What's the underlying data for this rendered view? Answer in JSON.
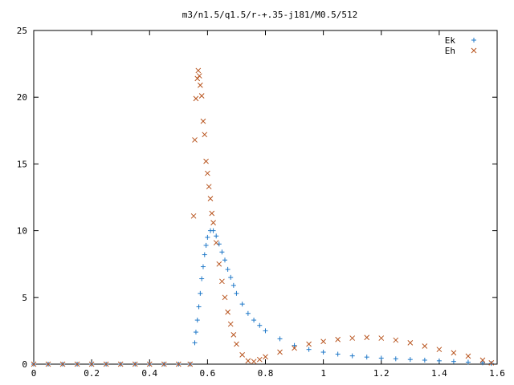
{
  "chart_data": {
    "type": "scatter",
    "title": "m3/n1.5/q1.5/r-+.35-j181/M0.5/512",
    "xlabel": "",
    "ylabel": "",
    "xlim": [
      0,
      1.6
    ],
    "ylim": [
      0,
      25
    ],
    "xticks": [
      "0",
      "0.2",
      "0.4",
      "0.6",
      "0.8",
      "1",
      "1.2",
      "1.4",
      "1.6"
    ],
    "yticks": [
      "0",
      "5",
      "10",
      "15",
      "20",
      "25"
    ],
    "grid": false,
    "legend_position": "top-right",
    "series": [
      {
        "name": "Ek",
        "marker": "plus",
        "color": "#1f78c8",
        "points": [
          [
            0.0,
            0
          ],
          [
            0.05,
            0
          ],
          [
            0.1,
            0
          ],
          [
            0.15,
            0
          ],
          [
            0.2,
            0
          ],
          [
            0.25,
            0
          ],
          [
            0.3,
            0
          ],
          [
            0.35,
            0
          ],
          [
            0.4,
            0
          ],
          [
            0.45,
            0
          ],
          [
            0.5,
            0
          ],
          [
            0.54,
            0
          ],
          [
            0.556,
            1.6
          ],
          [
            0.56,
            2.4
          ],
          [
            0.565,
            3.3
          ],
          [
            0.57,
            4.3
          ],
          [
            0.575,
            5.3
          ],
          [
            0.58,
            6.4
          ],
          [
            0.585,
            7.3
          ],
          [
            0.59,
            8.2
          ],
          [
            0.595,
            8.9
          ],
          [
            0.6,
            9.5
          ],
          [
            0.61,
            10.0
          ],
          [
            0.62,
            10.0
          ],
          [
            0.63,
            9.6
          ],
          [
            0.64,
            9.0
          ],
          [
            0.65,
            8.4
          ],
          [
            0.66,
            7.8
          ],
          [
            0.67,
            7.1
          ],
          [
            0.68,
            6.5
          ],
          [
            0.69,
            5.9
          ],
          [
            0.7,
            5.3
          ],
          [
            0.72,
            4.5
          ],
          [
            0.74,
            3.8
          ],
          [
            0.76,
            3.3
          ],
          [
            0.78,
            2.9
          ],
          [
            0.8,
            2.5
          ],
          [
            0.85,
            1.9
          ],
          [
            0.9,
            1.4
          ],
          [
            0.95,
            1.1
          ],
          [
            1.0,
            0.9
          ],
          [
            1.05,
            0.75
          ],
          [
            1.1,
            0.62
          ],
          [
            1.15,
            0.53
          ],
          [
            1.2,
            0.45
          ],
          [
            1.25,
            0.4
          ],
          [
            1.3,
            0.35
          ],
          [
            1.35,
            0.3
          ],
          [
            1.4,
            0.25
          ],
          [
            1.45,
            0.2
          ],
          [
            1.5,
            0.15
          ],
          [
            1.55,
            0.1
          ],
          [
            1.58,
            0.05
          ]
        ]
      },
      {
        "name": "Eh",
        "marker": "cross",
        "color": "#b8541e",
        "points": [
          [
            0.0,
            0
          ],
          [
            0.05,
            0
          ],
          [
            0.1,
            0
          ],
          [
            0.15,
            0
          ],
          [
            0.2,
            0
          ],
          [
            0.25,
            0
          ],
          [
            0.3,
            0
          ],
          [
            0.35,
            0
          ],
          [
            0.4,
            0
          ],
          [
            0.45,
            0
          ],
          [
            0.5,
            0
          ],
          [
            0.54,
            0
          ],
          [
            0.552,
            11.1
          ],
          [
            0.556,
            16.8
          ],
          [
            0.56,
            19.9
          ],
          [
            0.565,
            21.4
          ],
          [
            0.568,
            22.0
          ],
          [
            0.572,
            21.6
          ],
          [
            0.575,
            20.9
          ],
          [
            0.58,
            20.1
          ],
          [
            0.585,
            18.2
          ],
          [
            0.59,
            17.2
          ],
          [
            0.595,
            15.2
          ],
          [
            0.6,
            14.3
          ],
          [
            0.605,
            13.3
          ],
          [
            0.61,
            12.4
          ],
          [
            0.615,
            11.3
          ],
          [
            0.62,
            10.6
          ],
          [
            0.63,
            9.1
          ],
          [
            0.64,
            7.5
          ],
          [
            0.65,
            6.2
          ],
          [
            0.66,
            5.0
          ],
          [
            0.67,
            3.9
          ],
          [
            0.68,
            3.0
          ],
          [
            0.69,
            2.2
          ],
          [
            0.7,
            1.5
          ],
          [
            0.72,
            0.7
          ],
          [
            0.74,
            0.25
          ],
          [
            0.76,
            0.2
          ],
          [
            0.78,
            0.35
          ],
          [
            0.8,
            0.55
          ],
          [
            0.85,
            0.9
          ],
          [
            0.9,
            1.2
          ],
          [
            0.95,
            1.5
          ],
          [
            1.0,
            1.7
          ],
          [
            1.05,
            1.85
          ],
          [
            1.1,
            1.95
          ],
          [
            1.15,
            2.0
          ],
          [
            1.2,
            1.95
          ],
          [
            1.25,
            1.8
          ],
          [
            1.3,
            1.6
          ],
          [
            1.35,
            1.35
          ],
          [
            1.4,
            1.1
          ],
          [
            1.45,
            0.85
          ],
          [
            1.5,
            0.6
          ],
          [
            1.55,
            0.3
          ],
          [
            1.58,
            0.1
          ]
        ]
      }
    ]
  }
}
